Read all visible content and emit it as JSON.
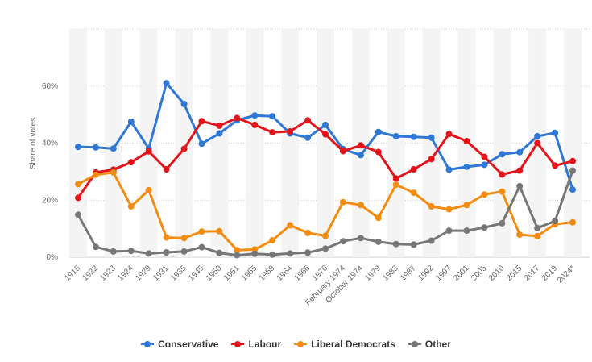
{
  "chart_data": {
    "type": "line",
    "ylabel": "Share of votes",
    "ylim": [
      0,
      80
    ],
    "yticks": [
      0,
      20,
      40,
      60
    ],
    "ytick_labels": [
      "0%",
      "20%",
      "40%",
      "60%"
    ],
    "grid": true,
    "legend_position": "bottom",
    "categories": [
      "1918",
      "1922",
      "1923",
      "1924",
      "1929",
      "1931",
      "1935",
      "1945",
      "1950",
      "1951",
      "1955",
      "1959",
      "1964",
      "1966",
      "1970",
      "February 1974",
      "October 1974",
      "1979",
      "1983",
      "1987",
      "1992",
      "1997",
      "2001",
      "2005",
      "2010",
      "2015",
      "2017",
      "2019",
      "2024*"
    ],
    "series": [
      {
        "name": "Conservative",
        "color": "#2f77d4",
        "values": [
          38.7,
          38.5,
          38.1,
          47.5,
          38.1,
          61.0,
          53.7,
          39.8,
          43.4,
          48.0,
          49.7,
          49.4,
          43.4,
          41.9,
          46.4,
          37.9,
          35.8,
          43.9,
          42.4,
          42.2,
          41.9,
          30.7,
          31.7,
          32.4,
          36.1,
          36.8,
          42.4,
          43.6,
          23.7
        ]
      },
      {
        "name": "Labour",
        "color": "#e3151a",
        "values": [
          20.8,
          29.7,
          30.7,
          33.3,
          37.1,
          30.8,
          38.0,
          47.7,
          46.1,
          48.8,
          46.4,
          43.8,
          44.1,
          48.0,
          43.1,
          37.2,
          39.2,
          36.9,
          27.6,
          30.8,
          34.4,
          43.2,
          40.7,
          35.2,
          29.0,
          30.4,
          40.0,
          32.1,
          33.7
        ]
      },
      {
        "name": "Liberal Democrats",
        "color": "#f28c12",
        "values": [
          25.6,
          28.9,
          29.7,
          17.8,
          23.5,
          6.9,
          6.7,
          9.0,
          9.1,
          2.5,
          2.7,
          5.9,
          11.2,
          8.5,
          7.5,
          19.3,
          18.3,
          13.8,
          25.4,
          22.6,
          17.8,
          16.8,
          18.3,
          22.0,
          23.0,
          7.9,
          7.4,
          11.6,
          12.2
        ]
      },
      {
        "name": "Other",
        "color": "#777777",
        "values": [
          14.9,
          3.6,
          2.0,
          2.2,
          1.3,
          1.7,
          2.0,
          3.5,
          1.5,
          0.7,
          1.2,
          0.9,
          1.3,
          1.6,
          3.0,
          5.6,
          6.7,
          5.4,
          4.6,
          4.4,
          5.8,
          9.3,
          9.3,
          10.4,
          11.9,
          24.9,
          10.2,
          12.7,
          30.4
        ]
      }
    ]
  }
}
